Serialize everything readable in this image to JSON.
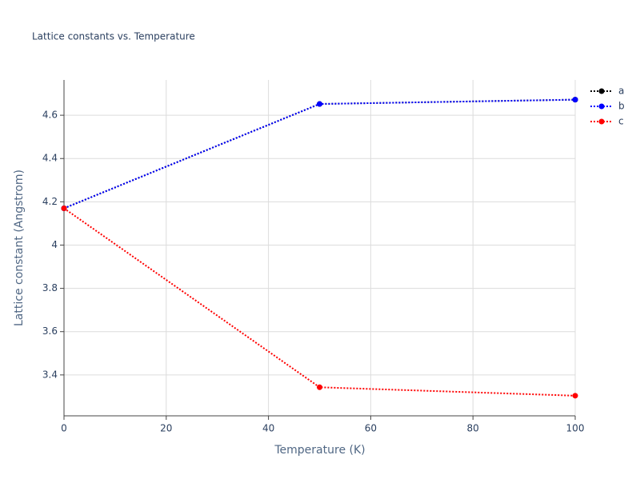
{
  "chart_data": {
    "type": "line",
    "title": "Lattice constants vs. Temperature",
    "x_label": "Temperature (K)",
    "y_label": "Lattice constant (Angstrom)",
    "x": [
      0,
      50,
      100
    ],
    "series": [
      {
        "name": "a",
        "color": "#000000",
        "values": [
          4.17,
          4.652,
          4.672
        ]
      },
      {
        "name": "b",
        "color": "#0000ff",
        "values": [
          4.17,
          4.652,
          4.672
        ]
      },
      {
        "name": "c",
        "color": "#ff0000",
        "values": [
          4.17,
          3.343,
          3.304
        ]
      }
    ],
    "xlim": [
      0,
      100
    ],
    "xticks": [
      0,
      20,
      40,
      60,
      80,
      100
    ],
    "ylim": [
      3.211,
      4.763
    ],
    "yticks": [
      3.4,
      3.6,
      3.8,
      4,
      4.2,
      4.4,
      4.6
    ],
    "grid": true,
    "legend": "right"
  }
}
